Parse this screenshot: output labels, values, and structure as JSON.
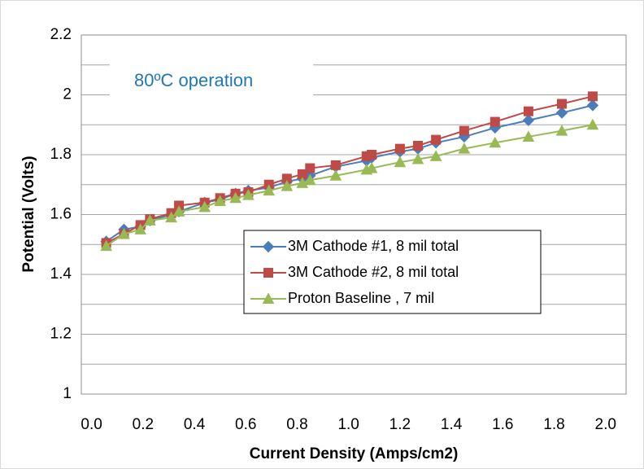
{
  "chart_data": {
    "type": "line",
    "annotation": "80ºC operation",
    "x_label": "Current Density (Amps/cm2)",
    "y_label": "Potential (Volts)",
    "x": [
      0.057,
      0.126,
      0.19,
      0.227,
      0.31,
      0.34,
      0.44,
      0.5,
      0.56,
      0.61,
      0.69,
      0.76,
      0.82,
      0.85,
      0.95,
      1.07,
      1.09,
      1.2,
      1.27,
      1.34,
      1.45,
      1.57,
      1.7,
      1.83,
      1.95
    ],
    "series": [
      {
        "name": "3M Cathode #1, 8 mil total",
        "color": "#4a7ebb",
        "marker": "diamond",
        "values": [
          1.51,
          1.55,
          1.56,
          1.58,
          1.6,
          1.61,
          1.64,
          1.65,
          1.67,
          1.68,
          1.69,
          1.71,
          1.72,
          1.73,
          1.76,
          1.78,
          1.79,
          1.81,
          1.82,
          1.84,
          1.86,
          1.89,
          1.915,
          1.94,
          1.965
        ]
      },
      {
        "name": "3M Cathode #2, 8 mil total",
        "color": "#be4b48",
        "marker": "square",
        "values": [
          1.505,
          1.535,
          1.565,
          1.585,
          1.605,
          1.63,
          1.64,
          1.655,
          1.67,
          1.675,
          1.7,
          1.72,
          1.735,
          1.755,
          1.765,
          1.795,
          1.8,
          1.82,
          1.83,
          1.85,
          1.88,
          1.91,
          1.945,
          1.97,
          1.995
        ]
      },
      {
        "name": "Proton Baseline , 7 mil",
        "color": "#98b954",
        "marker": "triangle",
        "values": [
          1.495,
          1.535,
          1.55,
          1.58,
          1.59,
          1.61,
          1.625,
          1.645,
          1.655,
          1.665,
          1.68,
          1.695,
          1.705,
          1.715,
          1.73,
          1.75,
          1.755,
          1.775,
          1.785,
          1.795,
          1.82,
          1.84,
          1.86,
          1.88,
          1.9
        ]
      }
    ],
    "xlim": [
      -0.04,
      2.08
    ],
    "xticks": [
      {
        "value": 0,
        "label": "0.0"
      },
      0.2,
      0.4,
      0.6,
      0.8,
      {
        "value": 1,
        "label": "1.0"
      },
      1.2,
      1.4,
      1.6,
      1.8,
      {
        "value": 2,
        "label": "2.0"
      }
    ],
    "ylim": [
      1,
      2.2
    ],
    "yticks": [
      1,
      1.2,
      1.4,
      1.6,
      1.8,
      2,
      2.2
    ],
    "y_minor_grid": [
      1.1,
      1.3,
      1.5,
      1.7,
      1.9,
      2.1
    ],
    "grid": true,
    "legend": "right"
  }
}
